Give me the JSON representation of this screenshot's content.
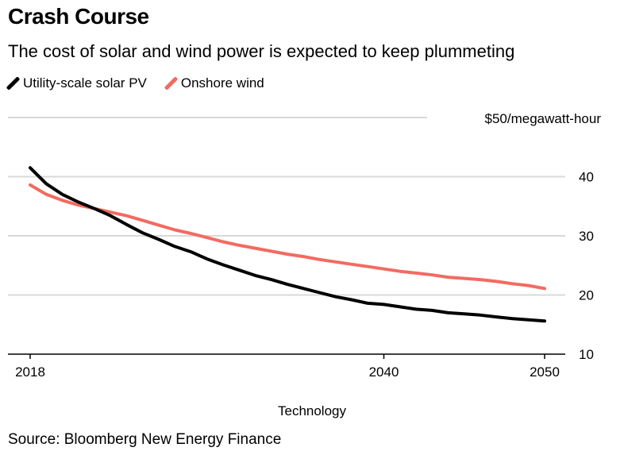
{
  "title": "Crash Course",
  "subtitle": "The cost of solar and wind power is expected to keep plummeting",
  "source": "Source: Bloomberg New Energy Finance",
  "chart_data": {
    "type": "line",
    "title": "Crash Course",
    "subtitle": "The cost of solar and wind power is expected to keep plummeting",
    "xlabel": "Technology",
    "ylabel": "",
    "unit_label": "$50/megawatt-hour",
    "x": [
      2018,
      2019,
      2020,
      2021,
      2022,
      2023,
      2024,
      2025,
      2026,
      2027,
      2028,
      2029,
      2030,
      2031,
      2032,
      2033,
      2034,
      2035,
      2036,
      2037,
      2038,
      2039,
      2040,
      2041,
      2042,
      2043,
      2044,
      2045,
      2046,
      2047,
      2048,
      2049,
      2050
    ],
    "xlim": [
      2018,
      2050
    ],
    "x_ticks": [
      2018,
      2040,
      2050
    ],
    "x_tick_labels": [
      "2018",
      "2040",
      "2050"
    ],
    "ylim": [
      10,
      50
    ],
    "y_ticks": [
      10,
      20,
      30,
      40
    ],
    "y_tick_labels": [
      "10",
      "20",
      "30",
      "40"
    ],
    "grid": true,
    "legend": "top-left",
    "series": [
      {
        "name": "Utility-scale solar PV",
        "color": "#000000",
        "values": [
          41.5,
          38.8,
          37.0,
          35.7,
          34.6,
          33.4,
          31.9,
          30.5,
          29.4,
          28.2,
          27.3,
          26.1,
          25.1,
          24.2,
          23.3,
          22.6,
          21.8,
          21.1,
          20.4,
          19.7,
          19.2,
          18.6,
          18.4,
          18.0,
          17.6,
          17.4,
          17.0,
          16.8,
          16.6,
          16.3,
          16.0,
          15.8,
          15.6
        ]
      },
      {
        "name": "Onshore wind",
        "color": "#f26b61",
        "values": [
          38.6,
          37.0,
          36.0,
          35.2,
          34.6,
          34.0,
          33.4,
          32.6,
          31.8,
          31.0,
          30.4,
          29.7,
          29.0,
          28.4,
          27.9,
          27.4,
          26.9,
          26.5,
          26.0,
          25.6,
          25.2,
          24.8,
          24.4,
          24.0,
          23.7,
          23.4,
          23.0,
          22.8,
          22.6,
          22.3,
          21.9,
          21.6,
          21.1
        ]
      }
    ]
  }
}
